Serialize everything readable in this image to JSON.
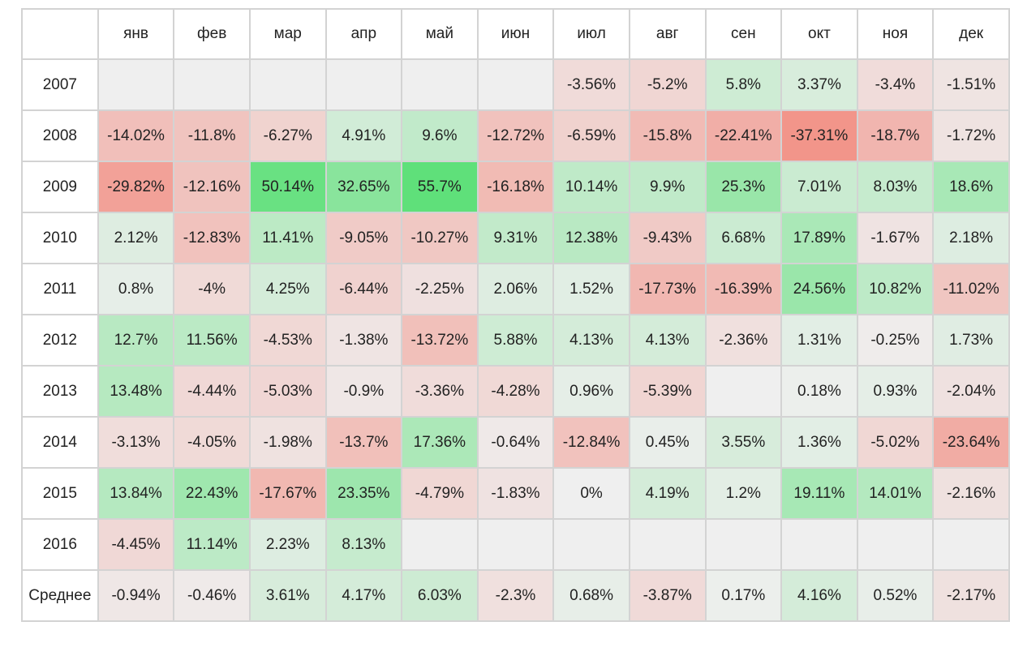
{
  "chart_data": {
    "type": "heatmap",
    "title": "",
    "corner_label": "",
    "columns": [
      "янв",
      "фев",
      "мар",
      "апр",
      "май",
      "июн",
      "июл",
      "авг",
      "сен",
      "окт",
      "ноя",
      "дек"
    ],
    "rows": [
      {
        "label": "2007",
        "cells": [
          "",
          "",
          "",
          "",
          "",
          "",
          "-3.56%",
          "-5.2%",
          "5.8%",
          "3.37%",
          "-3.4%",
          "-1.51%"
        ]
      },
      {
        "label": "2008",
        "cells": [
          "-14.02%",
          "-11.8%",
          "-6.27%",
          "4.91%",
          "9.6%",
          "-12.72%",
          "-6.59%",
          "-15.8%",
          "-22.41%",
          "-37.31%",
          "-18.7%",
          "-1.72%"
        ]
      },
      {
        "label": "2009",
        "cells": [
          "-29.82%",
          "-12.16%",
          "50.14%",
          "32.65%",
          "55.7%",
          "-16.18%",
          "10.14%",
          "9.9%",
          "25.3%",
          "7.01%",
          "8.03%",
          "18.6%"
        ]
      },
      {
        "label": "2010",
        "cells": [
          "2.12%",
          "-12.83%",
          "11.41%",
          "-9.05%",
          "-10.27%",
          "9.31%",
          "12.38%",
          "-9.43%",
          "6.68%",
          "17.89%",
          "-1.67%",
          "2.18%"
        ]
      },
      {
        "label": "2011",
        "cells": [
          "0.8%",
          "-4%",
          "4.25%",
          "-6.44%",
          "-2.25%",
          "2.06%",
          "1.52%",
          "-17.73%",
          "-16.39%",
          "24.56%",
          "10.82%",
          "-11.02%"
        ]
      },
      {
        "label": "2012",
        "cells": [
          "12.7%",
          "11.56%",
          "-4.53%",
          "-1.38%",
          "-13.72%",
          "5.88%",
          "4.13%",
          "4.13%",
          "-2.36%",
          "1.31%",
          "-0.25%",
          "1.73%"
        ]
      },
      {
        "label": "2013",
        "cells": [
          "13.48%",
          "-4.44%",
          "-5.03%",
          "-0.9%",
          "-3.36%",
          "-4.28%",
          "0.96%",
          "-5.39%",
          "",
          "0.18%",
          "0.93%",
          "-2.04%"
        ]
      },
      {
        "label": "2014",
        "cells": [
          "-3.13%",
          "-4.05%",
          "-1.98%",
          "-13.7%",
          "17.36%",
          "-0.64%",
          "-12.84%",
          "0.45%",
          "3.55%",
          "1.36%",
          "-5.02%",
          "-23.64%"
        ]
      },
      {
        "label": "2015",
        "cells": [
          "13.84%",
          "22.43%",
          "-17.67%",
          "23.35%",
          "-4.79%",
          "-1.83%",
          "0%",
          "4.19%",
          "1.2%",
          "19.11%",
          "14.01%",
          "-2.16%"
        ]
      },
      {
        "label": "2016",
        "cells": [
          "-4.45%",
          "11.14%",
          "2.23%",
          "8.13%",
          "",
          "",
          "",
          "",
          "",
          "",
          "",
          ""
        ]
      },
      {
        "label": "Среднее",
        "cells": [
          "-0.94%",
          "-0.46%",
          "3.61%",
          "4.17%",
          "6.03%",
          "-2.3%",
          "0.68%",
          "-3.87%",
          "0.17%",
          "4.16%",
          "0.52%",
          "-2.17%"
        ]
      }
    ],
    "color_scale": {
      "negative": "#f37a6c",
      "neutral": "#efefef",
      "positive": "#5fe07a",
      "max_abs": 55.7
    }
  }
}
